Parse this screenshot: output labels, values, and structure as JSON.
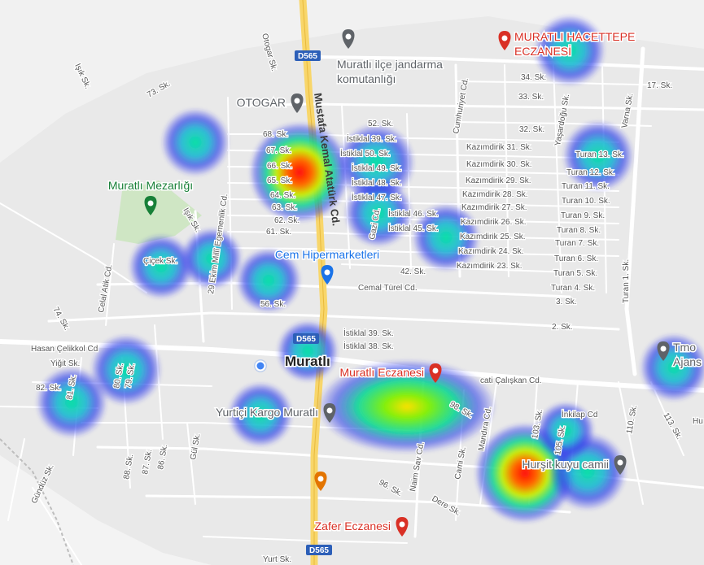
{
  "map": {
    "highway_label": "D565",
    "main_road_label": "Mustafa Kemal Atatürk Cd.",
    "town_label": "Muratlı",
    "pois": [
      {
        "id": "jandarma",
        "name_line1": "Muratlı ilçe jandarma",
        "name_line2": "komutanlığı",
        "type": "place",
        "color": "#5f6368"
      },
      {
        "id": "hacettepe",
        "name_line1": "MURATLI HACETTEPE",
        "name_line2": "ECZANESİ",
        "type": "pharmacy",
        "color": "#d93025"
      },
      {
        "id": "otogar",
        "name_line1": "OTOGAR",
        "type": "place",
        "color": "#5f6368"
      },
      {
        "id": "mezarlik",
        "name_line1": "Muratlı Mezarlığı",
        "type": "cemetery",
        "color": "#188038"
      },
      {
        "id": "cem",
        "name_line1": "Cem Hipermarketleri",
        "type": "shopping",
        "color": "#1a73e8"
      },
      {
        "id": "muratli_eczanesi",
        "name_line1": "Muratlı Eczanesi",
        "type": "pharmacy",
        "color": "#d93025"
      },
      {
        "id": "yurtici",
        "name_line1": "Yurtiçi Kargo Muratlı",
        "type": "place",
        "color": "#5f6368"
      },
      {
        "id": "hursit",
        "name_line1": "Hurşit kuyu camii",
        "type": "mosque",
        "color": "#5f6368"
      },
      {
        "id": "tmo",
        "name_line1": "Tmo",
        "name_line2": "Ajans",
        "type": "place",
        "color": "#5f6368"
      },
      {
        "id": "zafer",
        "name_line1": "Zafer Eczanesi",
        "type": "pharmacy",
        "color": "#d93025"
      },
      {
        "id": "cafe",
        "name_line1": "",
        "type": "cafe",
        "color": "#e37400"
      }
    ],
    "street_labels": [
      "Otogar Sk.",
      "Işık Sk.",
      "73. Sk.",
      "68. Sk.",
      "67. Sk.",
      "66. Sk.",
      "65. Sk.",
      "64. Sk.",
      "63. Sk.",
      "62. Sk.",
      "61. Sk.",
      "52. Sk.",
      "İstiklal 39. Sk.",
      "İstiklal 50. Sk.",
      "İstiklal 49. Sk.",
      "İstiklal 48. Sk.",
      "İstiklal 47. Sk.",
      "İstiklal 46. Sk.",
      "İstiklal 45. Sk.",
      "Gazi Cd.",
      "Cumhuriyet Cd.",
      "Kazımdirik 31. Sk.",
      "Kazımdirik 30. Sk.",
      "Kazımdirik 29. Sk.",
      "Kazımdirik 28. Sk.",
      "Kazımdirik 27. Sk.",
      "Kazımdirik 26. Sk.",
      "Kazımdirik 25. Sk.",
      "Kazımdirik 24. Sk.",
      "Kazımdirik 23. Sk.",
      "34. Sk.",
      "33. Sk.",
      "32. Sk.",
      "17. Sk.",
      "Yaşardoğu Sk.",
      "Varna Sk.",
      "Turan 13. Sk.",
      "Turan 12. Sk.",
      "Turan 11. Sk.",
      "Turan 10. Sk.",
      "Turan 9. Sk.",
      "Turan 8. Sk.",
      "Turan 7. Sk.",
      "Turan 6. Sk.",
      "Turan 5. Sk.",
      "Turan 4. Sk.",
      "3. Sk.",
      "2. Sk.",
      "Turan 1. Sk.",
      "42. Sk.",
      "Cemal Türel Cd.",
      "56. Sk.",
      "Çiçek Sk.",
      "29 Ekim Millî Egemenlik Cd.",
      "Celal Atik Cd.",
      "74. Sk.",
      "Işık Sk.",
      "İstiklal 39. Sk.",
      "İstiklal 38. Sk.",
      "Hasan Çelikkol Cd",
      "Yiğit Sk.",
      "80. Sk.",
      "79. Sk.",
      "82. Sk.",
      "81. Sk.",
      "cati Çalışkan Cd.",
      "98. Sk.",
      "İnkilap Cd",
      "103. Sk.",
      "105. Sk.",
      "110. Sk.",
      "113. Sk.",
      "Mandıra Cd.",
      "Cami Sk.",
      "Naim Sav Cd.",
      "Dere Sk.",
      "96. Sk.",
      "88. Sk.",
      "87. Sk.",
      "86. Sk.",
      "Gül Sk.",
      "Gündüz Sk.",
      "Yurt Sk.",
      "Hu"
    ],
    "heat_hotspots": [
      {
        "id": "west-68-sk",
        "intensity": 0.35
      },
      {
        "id": "65-sk",
        "intensity": 1.0
      },
      {
        "id": "istiklal-49",
        "intensity": 0.35
      },
      {
        "id": "istiklal-45",
        "intensity": 0.4
      },
      {
        "id": "kazimdirik-25",
        "intensity": 0.35
      },
      {
        "id": "muratli-hacettepe",
        "intensity": 0.3
      },
      {
        "id": "turan-13",
        "intensity": 0.4
      },
      {
        "id": "cicek-sk",
        "intensity": 0.35
      },
      {
        "id": "29-ekim",
        "intensity": 0.3
      },
      {
        "id": "56-sk",
        "intensity": 0.4
      },
      {
        "id": "muratli-center",
        "intensity": 0.3
      },
      {
        "id": "80-sk",
        "intensity": 0.4
      },
      {
        "id": "82-sk",
        "intensity": 0.4
      },
      {
        "id": "yurtici",
        "intensity": 0.35
      },
      {
        "id": "muratli-eczanesi",
        "intensity": 0.7
      },
      {
        "id": "hursit-camii",
        "intensity": 0.95
      },
      {
        "id": "105-sk",
        "intensity": 0.4
      },
      {
        "id": "tmo",
        "intensity": 0.4
      }
    ],
    "colors": {
      "land": "#e9e9e9",
      "road": "#ffffff",
      "highway": "#f8d66a",
      "park": "#cfe6c4",
      "heat_low": "#3a3ae8",
      "heat_mid": "#00e08a",
      "heat_high": "#ff1a0a",
      "location_dot": "#4285f4"
    }
  }
}
